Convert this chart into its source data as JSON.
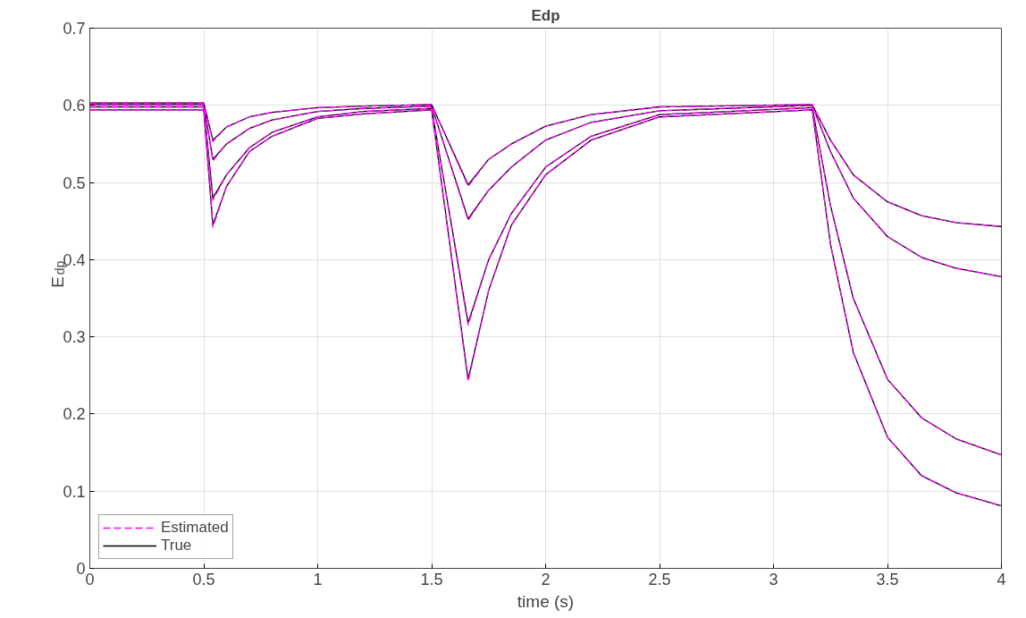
{
  "chart_data": {
    "type": "line",
    "title": "Edp",
    "xlabel": "time (s)",
    "ylabel": "E$_{dp}$",
    "x": [
      0,
      0.5,
      0.54,
      0.6,
      0.7,
      0.8,
      1.0,
      1.2,
      1.5,
      1.66,
      1.75,
      1.85,
      2.0,
      2.2,
      2.5,
      3.17,
      3.25,
      3.35,
      3.5,
      3.65,
      3.8,
      4.0
    ],
    "xlim": [
      0,
      4
    ],
    "ylim": [
      0,
      0.7
    ],
    "xticks": [
      0,
      0.5,
      1,
      1.5,
      2,
      2.5,
      3,
      3.5,
      4
    ],
    "yticks": [
      0,
      0.1,
      0.2,
      0.3,
      0.4,
      0.5,
      0.6,
      0.7
    ],
    "grid": true,
    "legend": "bottom left",
    "marker": "none",
    "series": [
      {
        "name": "Estimated",
        "color": "#ff00ff",
        "line_style": "dashed",
        "values": [
          0.603,
          0.603,
          0.553,
          0.572,
          0.585,
          0.591,
          0.597,
          0.599,
          0.601,
          0.495,
          0.53,
          0.55,
          0.573,
          0.588,
          0.598,
          0.601,
          0.555,
          0.51,
          0.475,
          0.457,
          0.448,
          0.443
        ]
      },
      {
        "color": "#ff00ff",
        "line_style": "dashed",
        "values": [
          0.601,
          0.601,
          0.528,
          0.55,
          0.57,
          0.581,
          0.592,
          0.596,
          0.599,
          0.451,
          0.49,
          0.52,
          0.555,
          0.578,
          0.593,
          0.6,
          0.54,
          0.48,
          0.43,
          0.403,
          0.389,
          0.378
        ]
      },
      {
        "color": "#ff00ff",
        "line_style": "dashed",
        "values": [
          0.598,
          0.598,
          0.477,
          0.51,
          0.545,
          0.565,
          0.585,
          0.592,
          0.596,
          0.315,
          0.4,
          0.46,
          0.52,
          0.56,
          0.588,
          0.597,
          0.47,
          0.35,
          0.245,
          0.195,
          0.168,
          0.147
        ]
      },
      {
        "color": "#ff00ff",
        "line_style": "dashed",
        "values": [
          0.594,
          0.594,
          0.442,
          0.495,
          0.54,
          0.56,
          0.583,
          0.589,
          0.594,
          0.242,
          0.36,
          0.445,
          0.51,
          0.555,
          0.585,
          0.594,
          0.42,
          0.28,
          0.17,
          0.12,
          0.098,
          0.081
        ]
      },
      {
        "name": "True",
        "color": "#000000",
        "line_style": "solid",
        "values": [
          0.603,
          0.603,
          0.555,
          0.572,
          0.585,
          0.591,
          0.597,
          0.599,
          0.601,
          0.497,
          0.53,
          0.55,
          0.573,
          0.588,
          0.598,
          0.601,
          0.555,
          0.51,
          0.475,
          0.457,
          0.448,
          0.443
        ]
      },
      {
        "color": "#000000",
        "line_style": "solid",
        "values": [
          0.601,
          0.601,
          0.53,
          0.55,
          0.57,
          0.581,
          0.592,
          0.596,
          0.599,
          0.453,
          0.49,
          0.52,
          0.555,
          0.578,
          0.593,
          0.6,
          0.54,
          0.48,
          0.43,
          0.403,
          0.389,
          0.378
        ]
      },
      {
        "color": "#000000",
        "line_style": "solid",
        "values": [
          0.598,
          0.598,
          0.48,
          0.51,
          0.545,
          0.565,
          0.585,
          0.592,
          0.596,
          0.318,
          0.4,
          0.46,
          0.52,
          0.56,
          0.588,
          0.597,
          0.47,
          0.35,
          0.245,
          0.195,
          0.168,
          0.147
        ]
      },
      {
        "color": "#000000",
        "line_style": "solid",
        "values": [
          0.594,
          0.594,
          0.445,
          0.495,
          0.54,
          0.56,
          0.583,
          0.589,
          0.594,
          0.245,
          0.36,
          0.445,
          0.51,
          0.555,
          0.585,
          0.594,
          0.42,
          0.28,
          0.17,
          0.12,
          0.098,
          0.081
        ]
      }
    ]
  }
}
